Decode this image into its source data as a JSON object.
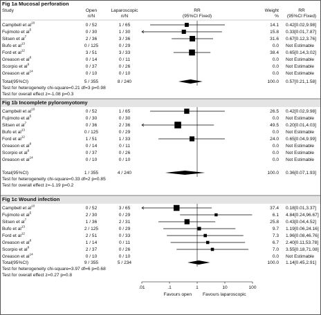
{
  "header": {
    "study": "Study",
    "open": [
      "Open",
      "n/N"
    ],
    "lap": [
      "Laparoscopic",
      "n/N"
    ],
    "plot": [
      "RR",
      "(95%CI Fixed)"
    ],
    "weight": [
      "Weight",
      "%"
    ],
    "rr": [
      "RR",
      "(95%CI Fixed)"
    ]
  },
  "chart_data": [
    {
      "type": "forest",
      "title": "Fig 1a Mucosal perforation",
      "studies": [
        {
          "name": "Campbell et al",
          "ref": "10",
          "open": "0 / 52",
          "lap": "1 / 65",
          "rr": 0.42,
          "ci_low": 0.02,
          "ci_high": 9.98,
          "weight": 14.1,
          "weight_label": "14.1",
          "rr_label": "0.42[0.02,9.98]"
        },
        {
          "name": "Fujimoto et al",
          "ref": "5",
          "open": "0 / 30",
          "lap": "1 / 30",
          "rr": 0.33,
          "ci_low": 0.01,
          "ci_high": 7.87,
          "weight": 15.8,
          "weight_label": "15.8",
          "rr_label": "0.33[0.01,7.87]"
        },
        {
          "name": "Sitsen et al",
          "ref": "7",
          "open": "2 / 36",
          "lap": "3 / 36",
          "rr": 0.67,
          "ci_low": 0.12,
          "ci_high": 3.76,
          "weight": 31.6,
          "weight_label": "31.6",
          "rr_label": "0.67[0.12,3.76]"
        },
        {
          "name": "Bufo et al",
          "ref": "13",
          "open": "0 / 125",
          "lap": "0 / 29",
          "rr": null,
          "ci_low": null,
          "ci_high": null,
          "weight": 0,
          "weight_label": "0.0",
          "rr_label": "Not Estimable"
        },
        {
          "name": "Ford et al",
          "ref": "12",
          "open": "3 / 51",
          "lap": "3 / 33",
          "rr": 0.65,
          "ci_low": 0.14,
          "ci_high": 3.02,
          "weight": 38.4,
          "weight_label": "38.4",
          "rr_label": "0.65[0.14,3.02]"
        },
        {
          "name": "Greason et al",
          "ref": "8",
          "open": "0 / 14",
          "lap": "0 / 11",
          "rr": null,
          "ci_low": null,
          "ci_high": null,
          "weight": 0,
          "weight_label": "0.0",
          "rr_label": "Not Estimable"
        },
        {
          "name": "Scorpio et al",
          "ref": "9",
          "open": "0 / 37",
          "lap": "0 / 26",
          "rr": null,
          "ci_low": null,
          "ci_high": null,
          "weight": 0,
          "weight_label": "0.0",
          "rr_label": "Not Estimable"
        },
        {
          "name": "Greason et al",
          "ref": "14",
          "open": "0 / 10",
          "lap": "0 / 10",
          "rr": null,
          "ci_low": null,
          "ci_high": null,
          "weight": 0,
          "weight_label": "0.0",
          "rr_label": "Not Estimable"
        }
      ],
      "total": {
        "name": "Total(95%CI)",
        "open": "5 / 355",
        "lap": "8 / 240",
        "rr": 0.57,
        "ci_low": 0.21,
        "ci_high": 1.58,
        "weight": 100,
        "weight_label": "100.0",
        "rr_label": "0.57[0.21,1.58]"
      },
      "heterogeneity": "Test for heterogeneity chi-square=0.21 df=3 p=0.98",
      "overall": "Test for overall effect  z=-1.08  p=0.3"
    },
    {
      "type": "forest",
      "title": "Fig 1b Incomplete pyloromyotomy",
      "studies": [
        {
          "name": "Campbell et al",
          "ref": "10",
          "open": "0 / 52",
          "lap": "1 / 65",
          "rr": 0.42,
          "ci_low": 0.02,
          "ci_high": 9.98,
          "weight": 26.5,
          "weight_label": "26.5",
          "rr_label": "0.42[0.02,9.98]"
        },
        {
          "name": "Fujimoto et al",
          "ref": "5",
          "open": "0 / 30",
          "lap": "0 / 30",
          "rr": null,
          "ci_low": null,
          "ci_high": null,
          "weight": 0,
          "weight_label": "0.0",
          "rr_label": "Not Estimable"
        },
        {
          "name": "Sitsen et al",
          "ref": "7",
          "open": "0 / 36",
          "lap": "2 / 36",
          "rr": 0.2,
          "ci_low": 0.01,
          "ci_high": 4.03,
          "weight": 49.5,
          "weight_label": "49.5",
          "rr_label": "0.20[0.01,4.03]"
        },
        {
          "name": "Bufo et al",
          "ref": "13",
          "open": "0 / 125",
          "lap": "0 / 29",
          "rr": null,
          "ci_low": null,
          "ci_high": null,
          "weight": 0,
          "weight_label": "0.0",
          "rr_label": "Not Estimable"
        },
        {
          "name": "Ford et al",
          "ref": "12",
          "open": "1 / 51",
          "lap": "1 / 33",
          "rr": 0.65,
          "ci_low": 0.04,
          "ci_high": 9.99,
          "weight": 24,
          "weight_label": "24.0",
          "rr_label": "0.65[0.04,9.99]"
        },
        {
          "name": "Greason et al",
          "ref": "8",
          "open": "0 / 14",
          "lap": "0 / 11",
          "rr": null,
          "ci_low": null,
          "ci_high": null,
          "weight": 0,
          "weight_label": "0.0",
          "rr_label": "Not Estimable"
        },
        {
          "name": "Scorpio et al",
          "ref": "9",
          "open": "0 / 37",
          "lap": "0 / 26",
          "rr": null,
          "ci_low": null,
          "ci_high": null,
          "weight": 0,
          "weight_label": "0.0",
          "rr_label": "Not Estimable"
        },
        {
          "name": "Greason et al",
          "ref": "14",
          "open": "0 / 10",
          "lap": "0 / 10",
          "rr": null,
          "ci_low": null,
          "ci_high": null,
          "weight": 0,
          "weight_label": "0.0",
          "rr_label": "Not Estimable"
        }
      ],
      "total": {
        "name": "Total(95%CI)",
        "open": "1 / 355",
        "lap": "4 / 240",
        "rr": 0.36,
        "ci_low": 0.07,
        "ci_high": 1.93,
        "weight": 100,
        "weight_label": "100.0",
        "rr_label": "0.36[0.07,1.93]"
      },
      "heterogeneity": "Test for heterogeneity chi-square=0.33 df=2 p=0.85",
      "overall": "Test for overall effect  z=-1.19  p=0.2"
    },
    {
      "type": "forest",
      "title": "Fig 1c Wound infection",
      "studies": [
        {
          "name": "Campbell et al",
          "ref": "10",
          "open": "0 / 52",
          "lap": "3 / 65",
          "rr": 0.18,
          "ci_low": 0.01,
          "ci_high": 3.37,
          "weight": 37.4,
          "weight_label": "37.4",
          "rr_label": "0.18[0.01,3.37]"
        },
        {
          "name": "Fujimoto et al",
          "ref": "5",
          "open": "2 / 30",
          "lap": "0 / 29",
          "rr": 4.84,
          "ci_low": 0.24,
          "ci_high": 96.67,
          "weight": 6.1,
          "weight_label": "6.1",
          "rr_label": "4.84[0.24,96.67]"
        },
        {
          "name": "Sitsen et al",
          "ref": "7",
          "open": "1 / 36",
          "lap": "2 / 31",
          "rr": 0.43,
          "ci_low": 0.04,
          "ci_high": 4.52,
          "weight": 25.8,
          "weight_label": "25.8",
          "rr_label": "0.43[0.04,4.52]"
        },
        {
          "name": "Bufo et al",
          "ref": "13",
          "open": "2 / 125",
          "lap": "0 / 29",
          "rr": 1.19,
          "ci_low": 0.06,
          "ci_high": 24.16,
          "weight": 9.7,
          "weight_label": "9.7",
          "rr_label": "1.19[0.06,24.16]"
        },
        {
          "name": "Ford et al",
          "ref": "12",
          "open": "2 / 51",
          "lap": "0 / 33",
          "rr": 1.96,
          "ci_low": 0.08,
          "ci_high": 46.76,
          "weight": 7.3,
          "weight_label": "7.3",
          "rr_label": "1.96[0.08,46.76]"
        },
        {
          "name": "Greason et al",
          "ref": "8",
          "open": "1 / 14",
          "lap": "0 / 11",
          "rr": 2.4,
          "ci_low": 0.11,
          "ci_high": 53.78,
          "weight": 6.7,
          "weight_label": "6.7",
          "rr_label": "2.40[0.11,53.78]"
        },
        {
          "name": "Scorpio et al",
          "ref": "9",
          "open": "2 / 37",
          "lap": "0 / 26",
          "rr": 3.55,
          "ci_low": 0.18,
          "ci_high": 71.08,
          "weight": 7,
          "weight_label": "7.0",
          "rr_label": "3.55[0.18,71.08]"
        },
        {
          "name": "Greason et al",
          "ref": "14",
          "open": "0 / 10",
          "lap": "0 / 10",
          "rr": null,
          "ci_low": null,
          "ci_high": null,
          "weight": 0,
          "weight_label": "0.0",
          "rr_label": "Not Estimable"
        }
      ],
      "total": {
        "name": "Total(95%CI)",
        "open": "9 / 355",
        "lap": "5 / 234",
        "rr": 1.14,
        "ci_low": 0.45,
        "ci_high": 2.91,
        "weight": 100,
        "weight_label": "100.0",
        "rr_label": "1.14[0.45,2.91]"
      },
      "heterogeneity": "Test for heterogeneity chi-square=3.97 df=6 p=0.68",
      "overall": "Test for overall effect  z=0.27  p=0.8",
      "log_x": true,
      "xlim": [
        0.01,
        100
      ],
      "xticks": [
        {
          "value": 0.01,
          "label": ".01"
        },
        {
          "value": 0.1,
          "label": ".1"
        },
        1,
        10,
        100
      ],
      "xlabels": [
        "Favours open",
        "Favours laparoscopic"
      ]
    }
  ]
}
